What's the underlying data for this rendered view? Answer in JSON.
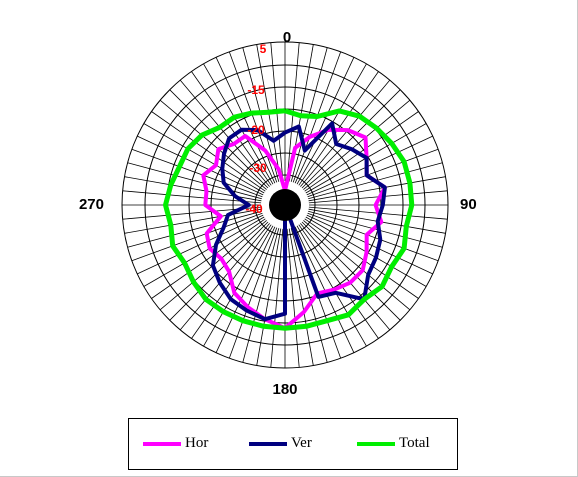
{
  "chart_data": {
    "type": "radar",
    "angle_tick_labels": [
      "0",
      "90",
      "180",
      "270"
    ],
    "radial_tick_labels": [
      "5",
      "-15",
      "-20",
      "-30",
      "-40"
    ],
    "radial_ticks": [
      5,
      -15,
      -20,
      -30,
      -40
    ],
    "r_range": [
      -40,
      5
    ],
    "angle_step_deg": 5,
    "grid": true,
    "legend_position": "bottom",
    "series": [
      {
        "name": "Hor",
        "color": "#ff00ff",
        "theta": [
          0,
          10,
          20,
          30,
          40,
          50,
          60,
          70,
          80,
          90,
          100,
          110,
          120,
          130,
          140,
          150,
          160,
          170,
          180,
          190,
          200,
          210,
          220,
          230,
          240,
          250,
          260,
          270,
          280,
          290,
          300,
          310,
          320,
          330,
          340,
          350
        ],
        "r": [
          -36,
          -24,
          -20,
          -16,
          -13,
          -11,
          -14,
          -16,
          -12,
          -15,
          -13,
          -16,
          -14,
          -12,
          -12,
          -13,
          -14,
          -10,
          -6,
          -8,
          -10,
          -12,
          -16,
          -17,
          -16,
          -17,
          -22,
          -18,
          -18,
          -16,
          -18,
          -16,
          -18,
          -18,
          -24,
          -30
        ]
      },
      {
        "name": "Ver",
        "color": "#000080",
        "theta": [
          0,
          10,
          20,
          30,
          40,
          50,
          60,
          70,
          80,
          90,
          100,
          110,
          120,
          130,
          140,
          150,
          160,
          170,
          180,
          190,
          200,
          210,
          220,
          230,
          240,
          250,
          260,
          270,
          280,
          290,
          300,
          310,
          320,
          330,
          340,
          350
        ],
        "r": [
          -20,
          -18,
          -24,
          -14,
          -18,
          -16,
          -14,
          -16,
          -12,
          -13,
          -14,
          -12,
          -11,
          -10,
          -6,
          -12,
          -13,
          -40,
          -10,
          -8,
          -9,
          -10,
          -12,
          -14,
          -18,
          -22,
          -24,
          -30,
          -26,
          -22,
          -20,
          -18,
          -16,
          -16,
          -18,
          -22
        ]
      },
      {
        "name": "Total",
        "color": "#00ee00",
        "theta": [
          0,
          10,
          20,
          30,
          40,
          50,
          60,
          70,
          80,
          90,
          100,
          110,
          120,
          130,
          140,
          150,
          160,
          170,
          180,
          190,
          200,
          210,
          220,
          230,
          240,
          250,
          260,
          270,
          280,
          290,
          300,
          310,
          320,
          330,
          340,
          350
        ],
        "r": [
          -14,
          -15,
          -14,
          -10,
          -8,
          -7,
          -6,
          -5,
          -5,
          -5,
          -6,
          -5,
          -6,
          -5,
          -6,
          -5,
          -6,
          -6,
          -6,
          -6,
          -6,
          -6,
          -6,
          -7,
          -8,
          -7,
          -8,
          -7,
          -8,
          -9,
          -9,
          -10,
          -12,
          -12,
          -13,
          -14
        ]
      }
    ]
  }
}
